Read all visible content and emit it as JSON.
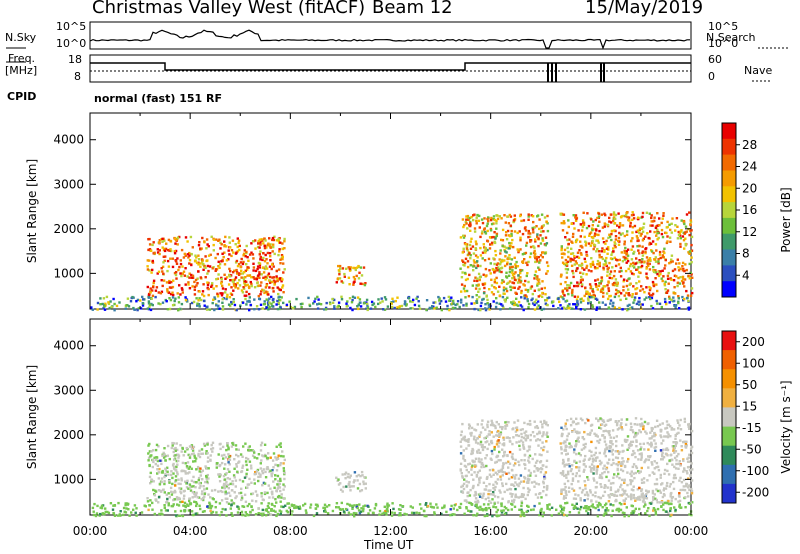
{
  "header": {
    "title": "Christmas Valley West (fitACF)",
    "beam": "Beam 12",
    "date": "15/May/2019"
  },
  "aux": {
    "nsky_label": "N.Sky",
    "nsky_ticks": [
      "10^5",
      "10^0"
    ],
    "nsearch_label": "N.Search",
    "nsearch_ticks": [
      "10^5",
      "10^0"
    ],
    "freq_label_1": "Freq.",
    "freq_label_2": "[MHz]",
    "freq_ticks": [
      "18",
      "8"
    ],
    "nave_label": "Nave",
    "nave_ticks": [
      "60",
      "0"
    ],
    "cpid_label": "CPID",
    "cpid_value": "normal (fast) 151 RF"
  },
  "chart_data": [
    {
      "type": "heatmap",
      "name": "power",
      "ylabel": "Slant Range [km]",
      "ylim": [
        200,
        4600
      ],
      "y_ticks": [
        1000,
        2000,
        3000,
        4000
      ],
      "xlim": [
        "00:00",
        "24:00"
      ],
      "colorbar": {
        "label": "Power [dB]",
        "range": [
          0,
          32
        ],
        "ticks": [
          "4",
          "8",
          "12",
          "16",
          "20",
          "24",
          "28"
        ],
        "colors": [
          "#0000ff",
          "#2b4fbf",
          "#3a7fa8",
          "#3f9a6a",
          "#6cbf3a",
          "#b7d53a",
          "#f2c200",
          "#f59b00",
          "#f26a00",
          "#ee3300",
          "#e80000"
        ]
      },
      "scatter_regions": [
        {
          "t_start": "02:15",
          "t_end": "07:45",
          "range_km": [
            500,
            1850
          ],
          "power_db": 24
        },
        {
          "t_start": "09:45",
          "t_end": "11:00",
          "range_km": [
            750,
            1200
          ],
          "power_db": 22
        },
        {
          "t_start": "14:45",
          "t_end": "18:15",
          "range_km": [
            500,
            2350
          ],
          "power_db": 20
        },
        {
          "t_start": "18:45",
          "t_end": "24:00",
          "range_km": [
            500,
            2400
          ],
          "power_db": 22
        },
        {
          "t_start": "00:00",
          "t_end": "24:00",
          "range_km": [
            200,
            500
          ],
          "power_db": 10
        }
      ]
    },
    {
      "type": "heatmap",
      "name": "velocity",
      "ylabel": "Slant Range [km]",
      "xlabel": "Time UT",
      "ylim": [
        200,
        4600
      ],
      "y_ticks": [
        1000,
        2000,
        3000,
        4000
      ],
      "x_ticks": [
        "00:00",
        "04:00",
        "08:00",
        "12:00",
        "16:00",
        "20:00",
        "00:00"
      ],
      "colorbar": {
        "label": "Velocity [m s⁻¹]",
        "range": [
          -250,
          250
        ],
        "ticks": [
          "200",
          "100",
          "50",
          "15",
          "-15",
          "-50",
          "-100",
          "-200"
        ],
        "colors": [
          "#2233cc",
          "#2f6fb0",
          "#2f8a5a",
          "#78c850",
          "#c8c8c0",
          "#f0b040",
          "#f59000",
          "#f06000",
          "#e81010"
        ]
      },
      "scatter_regions": [
        {
          "t_start": "02:15",
          "t_end": "07:45",
          "range_km": [
            500,
            1850
          ],
          "velocity": -20
        },
        {
          "t_start": "09:45",
          "t_end": "11:00",
          "range_km": [
            750,
            1200
          ],
          "velocity": 0
        },
        {
          "t_start": "14:45",
          "t_end": "18:15",
          "range_km": [
            500,
            2350
          ],
          "velocity": 0
        },
        {
          "t_start": "18:45",
          "t_end": "24:00",
          "range_km": [
            500,
            2400
          ],
          "velocity": 0
        },
        {
          "t_start": "00:00",
          "t_end": "24:00",
          "range_km": [
            200,
            500
          ],
          "velocity": -60
        }
      ]
    }
  ],
  "xlabel": "Time UT"
}
